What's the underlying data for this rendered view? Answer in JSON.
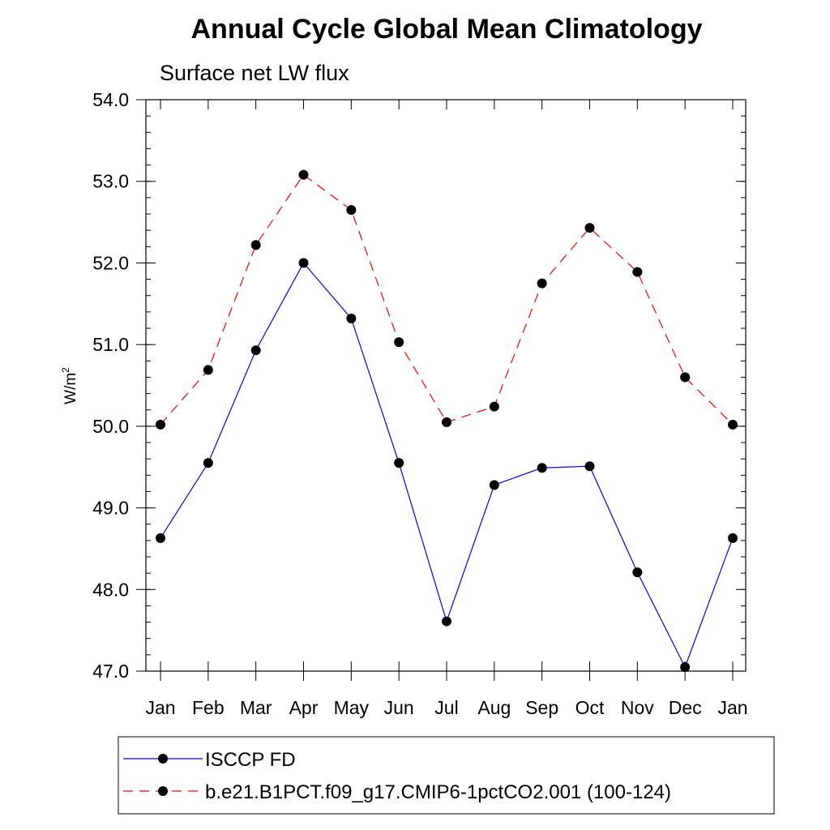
{
  "chart_data": {
    "type": "line",
    "title": "Annual Cycle Global Mean Climatology",
    "subtitle": "Surface net LW flux",
    "ylabel_base": "W/m",
    "ylabel_sup": "2",
    "ylim": [
      47.0,
      54.0
    ],
    "yticks": [
      "47.0",
      "48.0",
      "49.0",
      "50.0",
      "51.0",
      "52.0",
      "53.0",
      "54.0"
    ],
    "categories": [
      "Jan",
      "Feb",
      "Mar",
      "Apr",
      "May",
      "Jun",
      "Jul",
      "Aug",
      "Sep",
      "Oct",
      "Nov",
      "Dec",
      "Jan"
    ],
    "series": [
      {
        "name": "ISCCP FD",
        "color": "#0000ff",
        "dash": "solid",
        "values": [
          48.63,
          49.55,
          50.93,
          52.0,
          51.32,
          49.55,
          47.61,
          49.28,
          49.49,
          49.51,
          48.21,
          47.05,
          48.63
        ]
      },
      {
        "name": "b.e21.B1PCT.f09_g17.CMIP6-1pctCO2.001 (100-124)",
        "color": "#ff0000",
        "dash": "dashed",
        "values": [
          50.02,
          50.69,
          52.22,
          53.08,
          52.65,
          51.03,
          50.05,
          50.24,
          51.75,
          52.43,
          51.89,
          50.6,
          50.02
        ]
      }
    ],
    "legend_position": "bottom"
  }
}
